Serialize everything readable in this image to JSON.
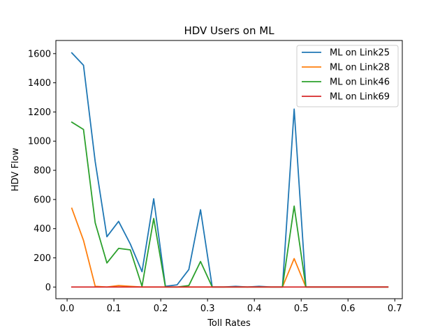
{
  "chart_data": {
    "type": "line",
    "title": "HDV Users on ML",
    "xlabel": "Toll Rates",
    "ylabel": "HDV Flow",
    "xlim": [
      -0.024,
      0.716
    ],
    "ylim": [
      -80,
      1690
    ],
    "xticks": [
      0.0,
      0.1,
      0.2,
      0.3,
      0.4,
      0.5,
      0.6,
      0.7
    ],
    "xtick_labels": [
      "0.0",
      "0.1",
      "0.2",
      "0.3",
      "0.4",
      "0.5",
      "0.6",
      "0.7"
    ],
    "yticks": [
      0,
      200,
      400,
      600,
      800,
      1000,
      1200,
      1400,
      1600
    ],
    "ytick_labels": [
      "0",
      "200",
      "400",
      "600",
      "800",
      "1000",
      "1200",
      "1400",
      "1600"
    ],
    "grid": false,
    "legend_position": "top-right",
    "x": [
      0.01,
      0.035,
      0.06,
      0.085,
      0.11,
      0.135,
      0.16,
      0.185,
      0.21,
      0.235,
      0.26,
      0.285,
      0.31,
      0.335,
      0.36,
      0.385,
      0.41,
      0.435,
      0.46,
      0.485,
      0.51,
      0.535,
      0.56,
      0.585,
      0.61,
      0.635,
      0.66,
      0.685
    ],
    "series": [
      {
        "name": "ML on Link25",
        "color": "#1f77b4",
        "values": [
          1605,
          1520,
          860,
          345,
          450,
          295,
          105,
          605,
          5,
          15,
          120,
          530,
          0,
          0,
          5,
          0,
          5,
          0,
          0,
          1220,
          0,
          0,
          0,
          0,
          0,
          0,
          0,
          0
        ]
      },
      {
        "name": "ML on Link28",
        "color": "#ff7f0e",
        "values": [
          540,
          320,
          5,
          0,
          10,
          5,
          0,
          0,
          0,
          0,
          0,
          0,
          0,
          0,
          0,
          0,
          0,
          0,
          0,
          195,
          0,
          0,
          0,
          0,
          0,
          0,
          0,
          0
        ]
      },
      {
        "name": "ML on Link46",
        "color": "#2ca02c",
        "values": [
          1130,
          1080,
          440,
          165,
          265,
          255,
          5,
          470,
          0,
          0,
          10,
          175,
          0,
          0,
          0,
          0,
          0,
          0,
          0,
          555,
          0,
          0,
          0,
          0,
          0,
          0,
          0,
          0
        ]
      },
      {
        "name": "ML on Link69",
        "color": "#d62728",
        "values": [
          0,
          0,
          0,
          0,
          0,
          0,
          0,
          0,
          0,
          0,
          0,
          0,
          0,
          0,
          0,
          0,
          0,
          0,
          0,
          0,
          0,
          0,
          0,
          0,
          0,
          0,
          0,
          0
        ]
      }
    ]
  }
}
